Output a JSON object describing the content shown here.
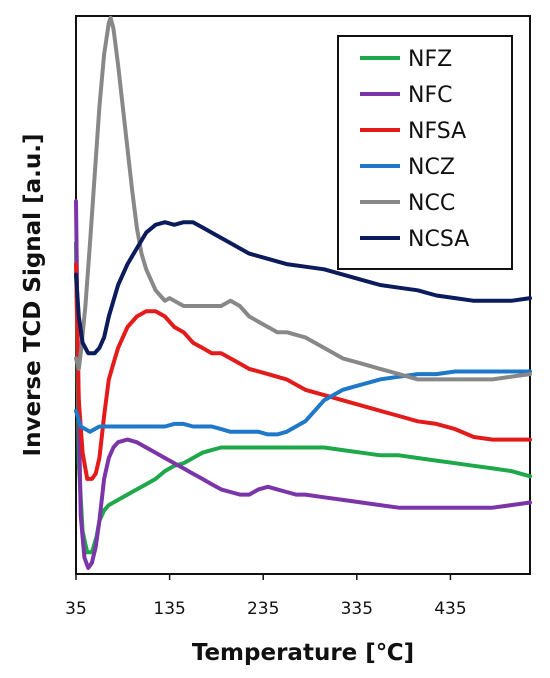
{
  "chart_data": {
    "type": "line",
    "xlabel": "Temperature [℃]",
    "ylabel": "Inverse TCD Signal [a.u.]",
    "xlim": [
      35,
      520
    ],
    "ylim": [
      0,
      100
    ],
    "xticks": [
      35,
      135,
      235,
      335,
      435
    ],
    "y_tick_labels": "none",
    "grid": false,
    "legend_position": "top-right",
    "series": [
      {
        "name": "NFZ",
        "color": "#1fa84a",
        "points": [
          [
            35,
            62
          ],
          [
            38,
            20
          ],
          [
            42,
            7
          ],
          [
            47,
            3
          ],
          [
            52,
            3
          ],
          [
            57,
            6
          ],
          [
            60,
            9
          ],
          [
            65,
            11
          ],
          [
            70,
            12
          ],
          [
            80,
            13
          ],
          [
            90,
            14
          ],
          [
            100,
            15
          ],
          [
            110,
            16
          ],
          [
            120,
            17
          ],
          [
            130,
            18.5
          ],
          [
            140,
            19.5
          ],
          [
            150,
            20
          ],
          [
            160,
            21
          ],
          [
            170,
            22
          ],
          [
            180,
            22.5
          ],
          [
            190,
            23
          ],
          [
            200,
            23
          ],
          [
            220,
            23
          ],
          [
            240,
            23
          ],
          [
            260,
            23
          ],
          [
            280,
            23
          ],
          [
            300,
            23
          ],
          [
            320,
            22.5
          ],
          [
            340,
            22
          ],
          [
            360,
            21.5
          ],
          [
            380,
            21.5
          ],
          [
            400,
            21
          ],
          [
            420,
            20.5
          ],
          [
            440,
            20
          ],
          [
            460,
            19.5
          ],
          [
            480,
            19
          ],
          [
            500,
            18.5
          ],
          [
            520,
            17.5
          ]
        ]
      },
      {
        "name": "NFC",
        "color": "#7b35a8",
        "points": [
          [
            35,
            70
          ],
          [
            37,
            40
          ],
          [
            40,
            10
          ],
          [
            44,
            2
          ],
          [
            48,
            0
          ],
          [
            52,
            1
          ],
          [
            56,
            4
          ],
          [
            60,
            9
          ],
          [
            65,
            17
          ],
          [
            70,
            21
          ],
          [
            75,
            23
          ],
          [
            80,
            24
          ],
          [
            90,
            24.5
          ],
          [
            100,
            24
          ],
          [
            110,
            23
          ],
          [
            120,
            22
          ],
          [
            130,
            21
          ],
          [
            140,
            20
          ],
          [
            150,
            19
          ],
          [
            160,
            18
          ],
          [
            170,
            17
          ],
          [
            180,
            16
          ],
          [
            190,
            15
          ],
          [
            200,
            14.5
          ],
          [
            210,
            14
          ],
          [
            220,
            14
          ],
          [
            230,
            15
          ],
          [
            240,
            15.5
          ],
          [
            250,
            15
          ],
          [
            260,
            14.5
          ],
          [
            270,
            14
          ],
          [
            280,
            14
          ],
          [
            300,
            13.5
          ],
          [
            320,
            13
          ],
          [
            340,
            12.5
          ],
          [
            360,
            12
          ],
          [
            380,
            11.5
          ],
          [
            400,
            11.5
          ],
          [
            420,
            11.5
          ],
          [
            440,
            11.5
          ],
          [
            460,
            11.5
          ],
          [
            480,
            11.5
          ],
          [
            500,
            12
          ],
          [
            520,
            12.5
          ]
        ]
      },
      {
        "name": "NFSA",
        "color": "#e31b1b",
        "points": [
          [
            35,
            58
          ],
          [
            38,
            32
          ],
          [
            42,
            22
          ],
          [
            47,
            17
          ],
          [
            52,
            17
          ],
          [
            56,
            18
          ],
          [
            60,
            21
          ],
          [
            65,
            29
          ],
          [
            70,
            36
          ],
          [
            75,
            39
          ],
          [
            80,
            42
          ],
          [
            90,
            46
          ],
          [
            100,
            48
          ],
          [
            110,
            49
          ],
          [
            120,
            49
          ],
          [
            130,
            48
          ],
          [
            140,
            46
          ],
          [
            150,
            45
          ],
          [
            160,
            43
          ],
          [
            170,
            42
          ],
          [
            180,
            41
          ],
          [
            190,
            41
          ],
          [
            200,
            40
          ],
          [
            220,
            38
          ],
          [
            240,
            37
          ],
          [
            260,
            36
          ],
          [
            280,
            34
          ],
          [
            300,
            33
          ],
          [
            320,
            32
          ],
          [
            340,
            31
          ],
          [
            360,
            30
          ],
          [
            380,
            29
          ],
          [
            400,
            28
          ],
          [
            420,
            27.5
          ],
          [
            440,
            26.5
          ],
          [
            460,
            25
          ],
          [
            480,
            24.5
          ],
          [
            500,
            24.5
          ],
          [
            520,
            24.5
          ]
        ]
      },
      {
        "name": "NCZ",
        "color": "#1f78c8",
        "points": [
          [
            35,
            30
          ],
          [
            40,
            27
          ],
          [
            50,
            26
          ],
          [
            60,
            27
          ],
          [
            70,
            27
          ],
          [
            80,
            27
          ],
          [
            90,
            27
          ],
          [
            100,
            27
          ],
          [
            110,
            27
          ],
          [
            120,
            27
          ],
          [
            130,
            27
          ],
          [
            140,
            27.5
          ],
          [
            150,
            27.5
          ],
          [
            160,
            27
          ],
          [
            170,
            27
          ],
          [
            180,
            27
          ],
          [
            190,
            26.5
          ],
          [
            200,
            26
          ],
          [
            210,
            26
          ],
          [
            220,
            26
          ],
          [
            230,
            26
          ],
          [
            240,
            25.5
          ],
          [
            250,
            25.5
          ],
          [
            260,
            26
          ],
          [
            270,
            27
          ],
          [
            280,
            28
          ],
          [
            290,
            30
          ],
          [
            300,
            32
          ],
          [
            310,
            33
          ],
          [
            320,
            34
          ],
          [
            340,
            35
          ],
          [
            360,
            36
          ],
          [
            380,
            36.5
          ],
          [
            400,
            37
          ],
          [
            420,
            37
          ],
          [
            440,
            37.5
          ],
          [
            460,
            37.5
          ],
          [
            480,
            37.5
          ],
          [
            500,
            37.5
          ],
          [
            520,
            37.5
          ]
        ]
      },
      {
        "name": "NCC",
        "color": "#888888",
        "points": [
          [
            35,
            40
          ],
          [
            38,
            38
          ],
          [
            40,
            41
          ],
          [
            45,
            50
          ],
          [
            50,
            62
          ],
          [
            55,
            75
          ],
          [
            60,
            88
          ],
          [
            65,
            98
          ],
          [
            70,
            104
          ],
          [
            72,
            105
          ],
          [
            75,
            103
          ],
          [
            80,
            96
          ],
          [
            85,
            88
          ],
          [
            90,
            80
          ],
          [
            95,
            72
          ],
          [
            100,
            65
          ],
          [
            105,
            60
          ],
          [
            110,
            57
          ],
          [
            115,
            55
          ],
          [
            120,
            53
          ],
          [
            125,
            52
          ],
          [
            130,
            51
          ],
          [
            135,
            51.5
          ],
          [
            140,
            51
          ],
          [
            150,
            50
          ],
          [
            160,
            50
          ],
          [
            170,
            50
          ],
          [
            180,
            50
          ],
          [
            190,
            50
          ],
          [
            200,
            51
          ],
          [
            210,
            50
          ],
          [
            220,
            48
          ],
          [
            230,
            47
          ],
          [
            240,
            46
          ],
          [
            250,
            45
          ],
          [
            260,
            45
          ],
          [
            280,
            44
          ],
          [
            300,
            42
          ],
          [
            320,
            40
          ],
          [
            340,
            39
          ],
          [
            360,
            38
          ],
          [
            380,
            37
          ],
          [
            400,
            36
          ],
          [
            420,
            36
          ],
          [
            440,
            36
          ],
          [
            460,
            36
          ],
          [
            480,
            36
          ],
          [
            500,
            36.5
          ],
          [
            520,
            37
          ]
        ]
      },
      {
        "name": "NCSA",
        "color": "#0b1b5c",
        "points": [
          [
            35,
            56
          ],
          [
            38,
            48
          ],
          [
            42,
            43
          ],
          [
            48,
            41
          ],
          [
            55,
            41
          ],
          [
            60,
            42
          ],
          [
            65,
            44
          ],
          [
            70,
            48
          ],
          [
            80,
            54
          ],
          [
            90,
            58
          ],
          [
            100,
            61
          ],
          [
            110,
            64
          ],
          [
            120,
            65.5
          ],
          [
            130,
            66
          ],
          [
            140,
            65.5
          ],
          [
            150,
            66
          ],
          [
            160,
            66
          ],
          [
            170,
            65
          ],
          [
            180,
            64
          ],
          [
            190,
            63
          ],
          [
            200,
            62
          ],
          [
            220,
            60
          ],
          [
            240,
            59
          ],
          [
            260,
            58
          ],
          [
            280,
            57.5
          ],
          [
            300,
            57
          ],
          [
            320,
            56
          ],
          [
            340,
            55
          ],
          [
            360,
            54
          ],
          [
            380,
            53.5
          ],
          [
            400,
            53
          ],
          [
            420,
            52
          ],
          [
            440,
            51.5
          ],
          [
            460,
            51
          ],
          [
            480,
            51
          ],
          [
            500,
            51
          ],
          [
            520,
            51.5
          ]
        ]
      }
    ]
  }
}
